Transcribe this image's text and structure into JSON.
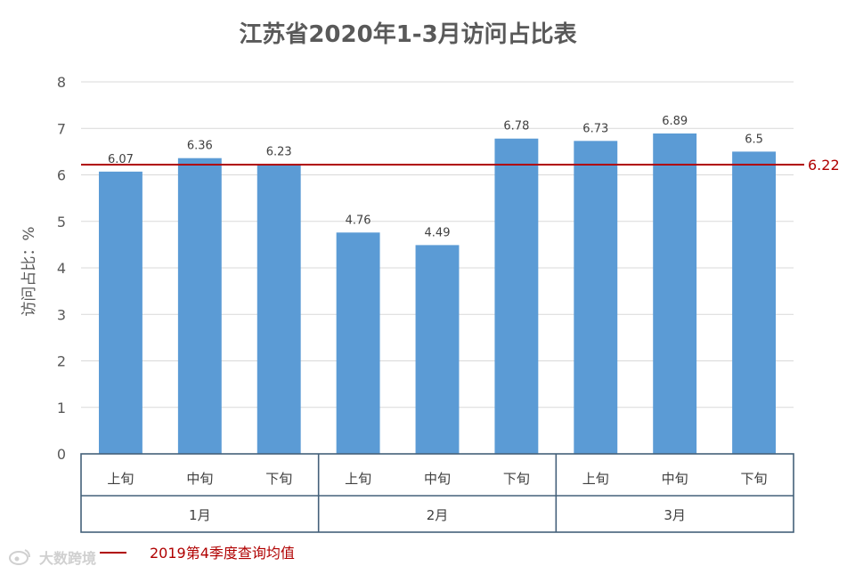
{
  "chart_data": {
    "type": "bar",
    "title": "江苏省2020年1-3月访问占比表",
    "ylabel": "访问占比：%",
    "ylim": [
      0,
      8
    ],
    "yticks": [
      "0",
      "1",
      "2",
      "3",
      "4",
      "5",
      "6",
      "7",
      "8"
    ],
    "grid": true,
    "categories": [
      "上旬",
      "中旬",
      "下旬",
      "上旬",
      "中旬",
      "下旬",
      "上旬",
      "中旬",
      "下旬"
    ],
    "groups": [
      "1月",
      "2月",
      "3月"
    ],
    "values": [
      6.07,
      6.36,
      6.23,
      4.76,
      4.49,
      6.78,
      6.73,
      6.89,
      6.5
    ],
    "data_labels": [
      "6.07",
      "6.36",
      "6.23",
      "4.76",
      "4.49",
      "6.78",
      "6.73",
      "6.89",
      "6.5"
    ],
    "reference_line": {
      "value": 6.22,
      "label": "6.22",
      "legend": "2019第4季度查询均值"
    },
    "colors": {
      "bar": "#5b9bd5",
      "reference": "#b00000",
      "table": "#44607a",
      "grid": "#d9d9d9"
    }
  },
  "watermark": {
    "icon": "weibo-icon",
    "text": "大数跨境"
  }
}
